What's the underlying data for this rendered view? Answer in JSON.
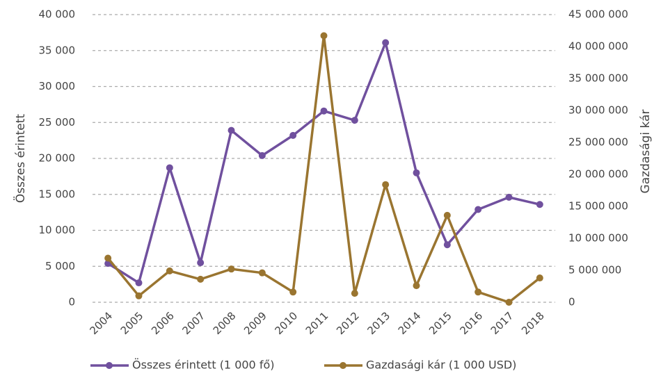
{
  "chart_data": {
    "type": "line",
    "categories": [
      "2004",
      "2005",
      "2006",
      "2007",
      "2008",
      "2009",
      "2010",
      "2011",
      "2012",
      "2013",
      "2014",
      "2015",
      "2016",
      "2017",
      "2018"
    ],
    "y_label": "Összes érintett",
    "y2_label": "Gazdasági kár",
    "series": [
      {
        "name": "Összes érintett (1 000 fő)",
        "color": "#70509e",
        "axis": "y",
        "values": [
          5400,
          2700,
          18700,
          5500,
          23900,
          20400,
          23200,
          26600,
          25300,
          36100,
          18000,
          8000,
          12900,
          14600,
          13600
        ]
      },
      {
        "name": "Gazdasági kár (1 000 USD)",
        "color": "#9a7530",
        "axis": "y2",
        "values": [
          6900000,
          1000000,
          4900000,
          3600000,
          5200000,
          4600000,
          1600000,
          41700000,
          1400000,
          18400000,
          2600000,
          13600000,
          1600000,
          0,
          3800000
        ]
      }
    ],
    "ylim": [
      0,
      40000
    ],
    "yticks": [
      0,
      {
        "value": 5000,
        "label": "5 000"
      },
      {
        "value": 10000,
        "label": "10 000"
      },
      {
        "value": 15000,
        "label": "15 000"
      },
      {
        "value": 20000,
        "label": "20 000"
      },
      {
        "value": 25000,
        "label": "25 000"
      },
      {
        "value": 30000,
        "label": "30 000"
      },
      {
        "value": 35000,
        "label": "35 000"
      },
      {
        "value": 40000,
        "label": "40 000"
      }
    ],
    "y2lim": [
      0,
      45000000
    ],
    "y2ticks": [
      0,
      {
        "value": 5000000,
        "label": "5 000 000"
      },
      {
        "value": 10000000,
        "label": "10 000 000"
      },
      {
        "value": 15000000,
        "label": "15 000 000"
      },
      {
        "value": 20000000,
        "label": "20 000 000"
      },
      {
        "value": 25000000,
        "label": "25 000 000"
      },
      {
        "value": 30000000,
        "label": "30 000 000"
      },
      {
        "value": 35000000,
        "label": "35 000 000"
      },
      {
        "value": 40000000,
        "label": "40 000 000"
      },
      {
        "value": 45000000,
        "label": "45 000 000"
      }
    ],
    "grid": true,
    "legend": "bottom"
  }
}
